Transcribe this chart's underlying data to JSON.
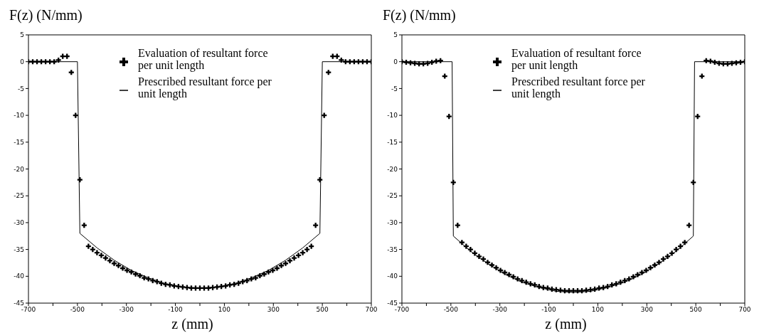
{
  "chart_data": [
    {
      "type": "line",
      "ylabel": "F(z)  (N/mm)",
      "xlabel": "z (mm)",
      "xlim": [
        -700,
        700
      ],
      "xticks": [
        -700,
        {
          "value": -600,
          "label": null
        },
        -500,
        {
          "value": -400,
          "label": null
        },
        -300,
        {
          "value": -200,
          "label": null
        },
        -100,
        {
          "value": 0,
          "label": null
        },
        100,
        {
          "value": 200,
          "label": null
        },
        300,
        {
          "value": 400,
          "label": null
        },
        500,
        {
          "value": 600,
          "label": null
        },
        700
      ],
      "ylim": [
        -45,
        5
      ],
      "yticks": [
        -45,
        -40,
        -35,
        -30,
        -25,
        -20,
        -15,
        -10,
        -5,
        0,
        5
      ],
      "legend": "top",
      "series": [
        {
          "name": "Evaluation of resultant force per unit length",
          "type": "scatter",
          "marker": "cross",
          "color": "#000000",
          "x": [
            -700,
            -682.5,
            -665,
            -647.5,
            -630,
            -612.5,
            -595,
            -577.5,
            -560,
            -542.5,
            -525,
            -507.5,
            -490,
            -472.5,
            -455,
            -437.5,
            -420,
            -402.5,
            -385,
            -367.5,
            -350,
            -332.5,
            -315,
            -297.5,
            -280,
            -262.5,
            -245,
            -227.5,
            -210,
            -192.5,
            -175,
            -157.5,
            -140,
            -122.5,
            -105,
            -87.5,
            -70,
            -52.5,
            -35,
            -17.5,
            0,
            17.5,
            35,
            52.5,
            70,
            87.5,
            105,
            122.5,
            140,
            157.5,
            175,
            192.5,
            210,
            227.5,
            245,
            262.5,
            280,
            297.5,
            315,
            332.5,
            350,
            367.5,
            385,
            402.5,
            420,
            437.5,
            455,
            472.5,
            490,
            507.5,
            525,
            542.5,
            560,
            577.5,
            595,
            612.5,
            630,
            647.5,
            665,
            682.5,
            700
          ],
          "values": [
            0,
            0,
            0,
            0,
            0,
            0,
            0,
            0.3,
            1,
            1,
            -2,
            -10,
            -22,
            -30.5,
            -34.4,
            -35,
            -35.6,
            -36.1,
            -36.6,
            -37.1,
            -37.6,
            -38,
            -38.5,
            -38.9,
            -39.2,
            -39.6,
            -39.9,
            -40.3,
            -40.5,
            -40.8,
            -41,
            -41.3,
            -41.5,
            -41.6,
            -41.8,
            -41.9,
            -42,
            -42.1,
            -42.2,
            -42.2,
            -42.2,
            -42.2,
            -42.2,
            -42.1,
            -42,
            -41.9,
            -41.8,
            -41.6,
            -41.5,
            -41.3,
            -41,
            -40.8,
            -40.5,
            -40.3,
            -39.9,
            -39.6,
            -39.2,
            -38.9,
            -38.5,
            -38,
            -37.6,
            -37.1,
            -36.6,
            -36.1,
            -35.6,
            -35,
            -34.4,
            -30.5,
            -22,
            -10,
            -2,
            1,
            1,
            0.3,
            0,
            0,
            0,
            0,
            0,
            0,
            0
          ]
        },
        {
          "name": "Prescribed resultant force per unit length",
          "type": "line",
          "color": "#000000",
          "x": [
            -700,
            -500,
            -490,
            -420,
            -350,
            -280,
            -210,
            -140,
            -70,
            0,
            70,
            140,
            210,
            280,
            350,
            420,
            490,
            500,
            700
          ],
          "values": [
            0,
            0,
            -32,
            -34.7,
            -37,
            -38.9,
            -40.3,
            -41.4,
            -42,
            -42.2,
            -42,
            -41.4,
            -40.3,
            -38.9,
            -37,
            -34.7,
            -32,
            0,
            0
          ]
        }
      ]
    },
    {
      "type": "line",
      "ylabel": "F(z)  (N/mm)",
      "xlabel": "z (mm)",
      "xlim": [
        -700,
        700
      ],
      "xticks": [
        -700,
        {
          "value": -600,
          "label": null
        },
        -500,
        {
          "value": -400,
          "label": null
        },
        -300,
        {
          "value": -200,
          "label": null
        },
        -100,
        {
          "value": 0,
          "label": null
        },
        100,
        {
          "value": 200,
          "label": null
        },
        300,
        {
          "value": 400,
          "label": null
        },
        500,
        {
          "value": 600,
          "label": null
        },
        700
      ],
      "ylim": [
        -45,
        5
      ],
      "yticks": [
        -45,
        -40,
        -35,
        -30,
        -25,
        -20,
        -15,
        -10,
        -5,
        0,
        5
      ],
      "legend": "top",
      "series": [
        {
          "name": "Evaluation of resultant force per unit length",
          "type": "scatter",
          "marker": "cross",
          "color": "#000000",
          "x": [
            -700,
            -682.5,
            -665,
            -647.5,
            -630,
            -612.5,
            -595,
            -577.5,
            -560,
            -542.5,
            -525,
            -507.5,
            -490,
            -472.5,
            -455,
            -437.5,
            -420,
            -402.5,
            -385,
            -367.5,
            -350,
            -332.5,
            -315,
            -297.5,
            -280,
            -262.5,
            -245,
            -227.5,
            -210,
            -192.5,
            -175,
            -157.5,
            -140,
            -122.5,
            -105,
            -87.5,
            -70,
            -52.5,
            -35,
            -17.5,
            0,
            17.5,
            35,
            52.5,
            70,
            87.5,
            105,
            122.5,
            140,
            157.5,
            175,
            192.5,
            210,
            227.5,
            245,
            262.5,
            280,
            297.5,
            315,
            332.5,
            350,
            367.5,
            385,
            402.5,
            420,
            437.5,
            455,
            472.5,
            490,
            507.5,
            525,
            542.5,
            560,
            577.5,
            595,
            612.5,
            630,
            647.5,
            665,
            682.5,
            700
          ],
          "values": [
            0,
            -0.1,
            -0.2,
            -0.3,
            -0.4,
            -0.4,
            -0.3,
            -0.1,
            0.1,
            0.2,
            -2.7,
            -10.2,
            -22.5,
            -30.5,
            -33.7,
            -34.4,
            -35,
            -35.7,
            -36.3,
            -36.8,
            -37.4,
            -37.9,
            -38.4,
            -38.9,
            -39.3,
            -39.7,
            -40.1,
            -40.5,
            -40.8,
            -41.1,
            -41.4,
            -41.6,
            -41.9,
            -42.1,
            -42.2,
            -42.4,
            -42.5,
            -42.6,
            -42.7,
            -42.7,
            -42.7,
            -42.7,
            -42.7,
            -42.6,
            -42.5,
            -42.4,
            -42.2,
            -42.1,
            -41.9,
            -41.6,
            -41.4,
            -41.1,
            -40.8,
            -40.5,
            -40.1,
            -39.7,
            -39.3,
            -38.9,
            -38.4,
            -37.9,
            -37.4,
            -36.8,
            -36.3,
            -35.7,
            -35,
            -34.4,
            -33.7,
            -30.5,
            -22.5,
            -10.2,
            -2.7,
            0.2,
            0.1,
            -0.1,
            -0.3,
            -0.4,
            -0.4,
            -0.3,
            -0.2,
            -0.1,
            0
          ]
        },
        {
          "name": "Prescribed resultant force per unit length",
          "type": "line",
          "color": "#000000",
          "x": [
            -700,
            -495,
            -490,
            -420,
            -350,
            -280,
            -210,
            -140,
            -70,
            0,
            70,
            140,
            210,
            280,
            350,
            420,
            490,
            495,
            700
          ],
          "values": [
            0,
            0,
            -32.5,
            -35.3,
            -37.6,
            -39.6,
            -41.1,
            -42.1,
            -42.8,
            -43,
            -42.8,
            -42.1,
            -41.1,
            -39.6,
            -37.6,
            -35.3,
            -32.5,
            0,
            0
          ]
        }
      ]
    }
  ]
}
